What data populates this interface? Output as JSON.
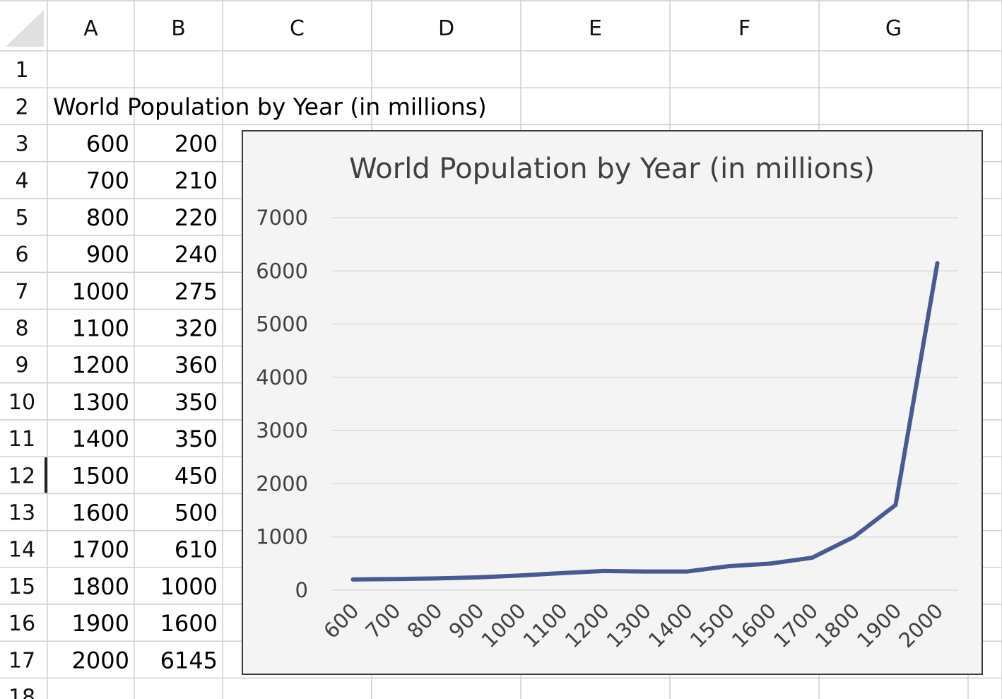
{
  "spreadsheet": {
    "column_headers": [
      "A",
      "B",
      "C",
      "D",
      "E",
      "F",
      "G"
    ],
    "row_headers": [
      "1",
      "2",
      "3",
      "4",
      "5",
      "6",
      "7",
      "8",
      "9",
      "10",
      "11",
      "12",
      "13",
      "14",
      "15",
      "16",
      "17",
      "18"
    ],
    "title_cell": "World Population by Year (in millions)",
    "rows": [
      [
        "600",
        "200"
      ],
      [
        "700",
        "210"
      ],
      [
        "800",
        "220"
      ],
      [
        "900",
        "240"
      ],
      [
        "1000",
        "275"
      ],
      [
        "1100",
        "320"
      ],
      [
        "1200",
        "360"
      ],
      [
        "1300",
        "350"
      ],
      [
        "1400",
        "350"
      ],
      [
        "1500",
        "450"
      ],
      [
        "1600",
        "500"
      ],
      [
        "1700",
        "610"
      ],
      [
        "1800",
        "1000"
      ],
      [
        "1900",
        "1600"
      ],
      [
        "2000",
        "6145"
      ]
    ],
    "selected_row": "12"
  },
  "chart_data": {
    "type": "line",
    "title": "World Population by Year (in millions)",
    "categories": [
      "600",
      "700",
      "800",
      "900",
      "1000",
      "1100",
      "1200",
      "1300",
      "1400",
      "1500",
      "1600",
      "1700",
      "1800",
      "1900",
      "2000"
    ],
    "series": [
      {
        "values": [
          200,
          210,
          220,
          240,
          275,
          320,
          360,
          350,
          350,
          450,
          500,
          610,
          1000,
          1600,
          6145
        ]
      }
    ],
    "y_ticks": [
      "0",
      "1000",
      "2000",
      "3000",
      "4000",
      "5000",
      "6000",
      "7000"
    ],
    "ylim": [
      0,
      7000
    ],
    "grid": true,
    "line_color": "#4a5a8f"
  }
}
